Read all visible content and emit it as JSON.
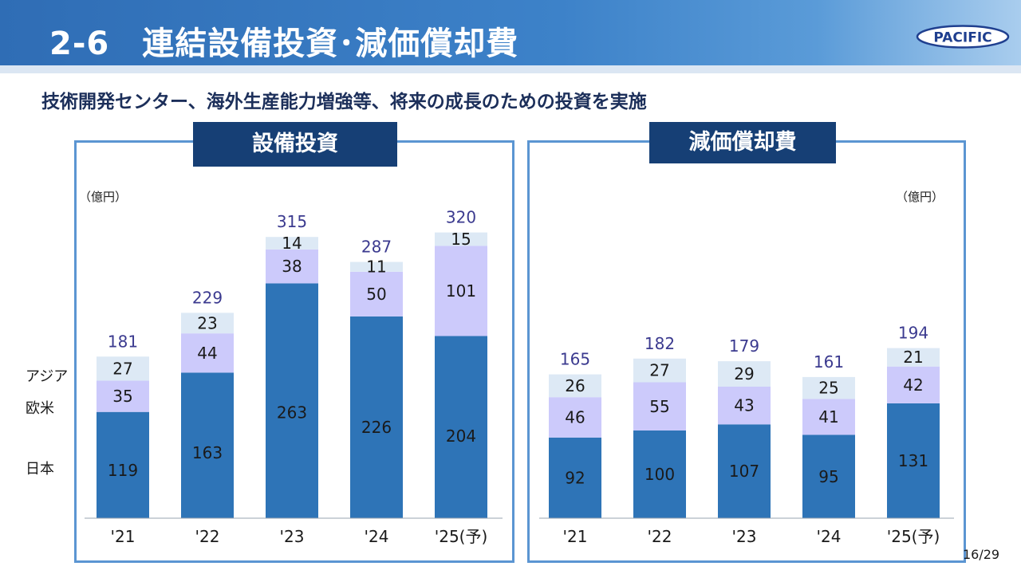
{
  "header": {
    "title": "2-6　連結設備投資･減価償却費",
    "logo_text": "PACIFIC"
  },
  "subtitle": "技術開発センター、海外生産能力増強等、将来の成長のための投資を実施",
  "page_number": "16/29",
  "colors": {
    "japan": "#2e74b7",
    "europe_us": "#cccafb",
    "asia": "#dde9f5",
    "total_label": "#3b3a8f",
    "header_blue": "#2f6db5",
    "tag_navy": "#163f75"
  },
  "legend": {
    "asia": "アジア",
    "europe_us": "欧米",
    "japan": "日本"
  },
  "chart_data": [
    {
      "type": "bar",
      "stacked": true,
      "title": "設備投資",
      "unit": "（億円）",
      "categories": [
        "'21",
        "'22",
        "'23",
        "'24",
        "'25(予)"
      ],
      "series": [
        {
          "name": "日本",
          "values": [
            119,
            163,
            263,
            226,
            204
          ]
        },
        {
          "name": "欧米",
          "values": [
            35,
            44,
            38,
            50,
            101
          ]
        },
        {
          "name": "アジア",
          "values": [
            27,
            23,
            14,
            11,
            15
          ]
        }
      ],
      "totals": [
        181,
        229,
        315,
        287,
        320
      ]
    },
    {
      "type": "bar",
      "stacked": true,
      "title": "減価償却費",
      "unit": "（億円）",
      "categories": [
        "'21",
        "'22",
        "'23",
        "'24",
        "'25(予)"
      ],
      "series": [
        {
          "name": "日本",
          "values": [
            92,
            100,
            107,
            95,
            131
          ]
        },
        {
          "name": "欧米",
          "values": [
            46,
            55,
            43,
            41,
            42
          ]
        },
        {
          "name": "アジア",
          "values": [
            26,
            27,
            29,
            25,
            21
          ]
        }
      ],
      "totals": [
        165,
        182,
        179,
        161,
        194
      ]
    }
  ]
}
